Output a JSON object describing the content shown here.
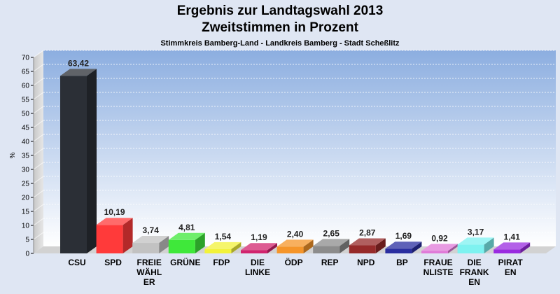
{
  "chart_data": {
    "type": "bar",
    "title": "Ergebnis zur Landtagswahl 2013",
    "title2": "Zweitstimmen in Prozent",
    "subtitle": "Stimmkreis Bamberg-Land - Landkreis Bamberg - Stadt Scheßlitz",
    "ylabel": "%",
    "ylim": [
      0,
      70
    ],
    "yticks": [
      0,
      5,
      10,
      15,
      20,
      25,
      30,
      35,
      40,
      45,
      50,
      55,
      60,
      65,
      70
    ],
    "grid": true,
    "categories": [
      [
        "CSU"
      ],
      [
        "SPD"
      ],
      [
        "FREIE",
        "WÄHL",
        "ER"
      ],
      [
        "GRÜNE"
      ],
      [
        "FDP"
      ],
      [
        "DIE",
        "LINKE"
      ],
      [
        "ÖDP"
      ],
      [
        "REP"
      ],
      [
        "NPD"
      ],
      [
        "BP"
      ],
      [
        "FRAUE",
        "NLISTE"
      ],
      [
        "DIE",
        "FRANK",
        "EN"
      ],
      [
        "PIRAT",
        "EN"
      ]
    ],
    "values": [
      63.42,
      10.19,
      3.74,
      4.81,
      1.54,
      1.19,
      2.4,
      2.65,
      2.87,
      1.69,
      0.92,
      3.17,
      1.41
    ],
    "value_labels": [
      "63,42",
      "10,19",
      "3,74",
      "4,81",
      "1,54",
      "1,19",
      "2,40",
      "2,65",
      "2,87",
      "1,69",
      "0,92",
      "3,17",
      "1,41"
    ],
    "colors": [
      "#2b2f36",
      "#ff3a3a",
      "#c2c2c2",
      "#3fe83a",
      "#f2f23a",
      "#d1246e",
      "#f5952a",
      "#8c8c8c",
      "#962a2a",
      "#2a2ea0",
      "#e07ad8",
      "#7ef2f0",
      "#9a2be0"
    ]
  }
}
